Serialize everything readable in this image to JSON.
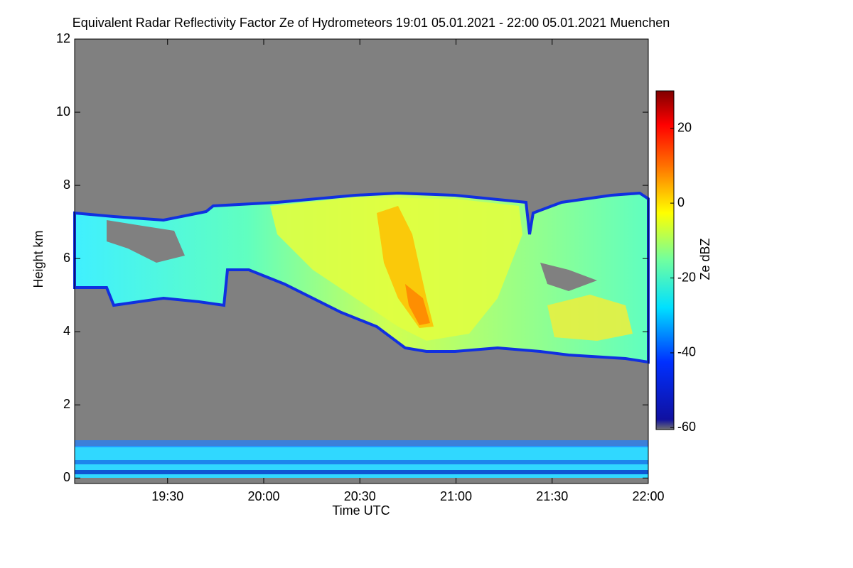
{
  "chart_data": {
    "type": "heatmap",
    "title": "Equivalent Radar Reflectivity Factor Ze of Hydrometeors   19:01 05.01.2021 - 22:00 05.01.2021 Muenchen",
    "x_label": "Time UTC",
    "y_label": "Height km",
    "colorbar_label": "Ze dBZ",
    "xlim": [
      1,
      180
    ],
    "xticks": [
      {
        "value": 30,
        "label": "19:30"
      },
      {
        "value": 60,
        "label": "20:00"
      },
      {
        "value": 90,
        "label": "20:30"
      },
      {
        "value": 120,
        "label": "21:00"
      },
      {
        "value": 150,
        "label": "21:30"
      },
      {
        "value": 180,
        "label": "22:00"
      }
    ],
    "ylim": [
      -0.15,
      12
    ],
    "yticks": [
      0,
      2,
      4,
      6,
      8,
      10,
      12
    ],
    "clim": [
      -60.5,
      30
    ],
    "cticks": [
      -60,
      -40,
      -20,
      0,
      20
    ]
  }
}
